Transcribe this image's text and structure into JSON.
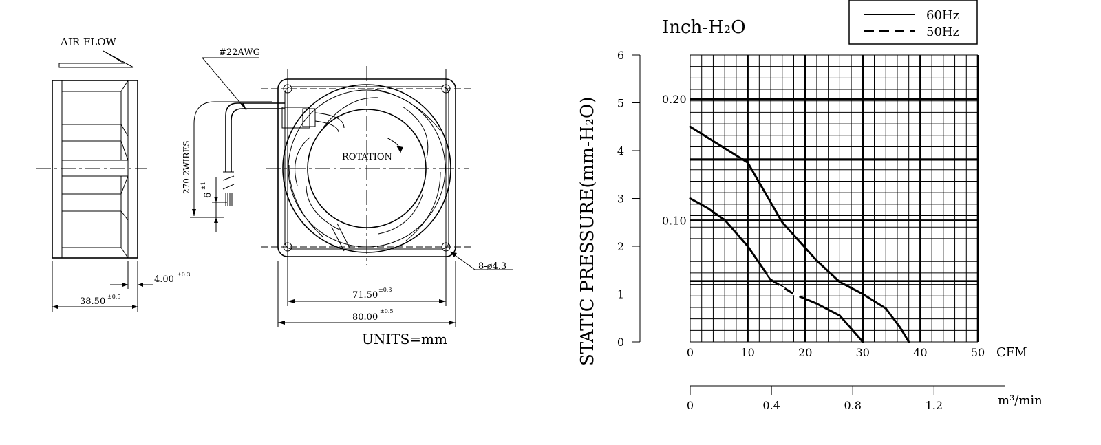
{
  "drawing": {
    "airflow_label": "AIR FLOW",
    "wire_label": "#22AWG",
    "wire_length_label": "270 2WIRES",
    "strip_dim": "6",
    "strip_tol": "±1",
    "rotation_label": "ROTATION",
    "hole_label": "8-ø4.3",
    "dims": [
      {
        "value": "4.00",
        "tol": "±0.3"
      },
      {
        "value": "38.50",
        "tol": "±0.5"
      },
      {
        "value": "71.50",
        "tol": "±0.3"
      },
      {
        "value": "80.00",
        "tol": "±0.5"
      }
    ],
    "units_label": "UNITS=mm"
  },
  "chart_data": {
    "type": "line",
    "unit_title": "Inch-H₂O",
    "ylabel": "STATIC PRESSURE(mm-H₂O)",
    "xlabel": "CFM",
    "xlim": [
      0,
      50
    ],
    "ylim": [
      0,
      6
    ],
    "x_ticks": [
      "0",
      "10",
      "20",
      "30",
      "40",
      "50"
    ],
    "y_ticks": [
      "0",
      "1",
      "2",
      "3",
      "4",
      "5",
      "6"
    ],
    "y2_ticks": [
      {
        "label": "0.10",
        "value": 2.54
      },
      {
        "label": "0.20",
        "value": 5.08
      }
    ],
    "x2_label": "m³/min",
    "x2_ticks": [
      {
        "label": "0",
        "value": 0
      },
      {
        "label": "0.4",
        "value": 14.13
      },
      {
        "label": "0.8",
        "value": 28.25
      },
      {
        "label": "1.2",
        "value": 42.38
      }
    ],
    "grid": true,
    "legend_position": "top-right",
    "series": [
      {
        "name": "60Hz",
        "style": "solid",
        "x": [
          0,
          4,
          10,
          16,
          22,
          26,
          30,
          34,
          36.5,
          38
        ],
        "y": [
          4.5,
          4.2,
          3.75,
          2.5,
          1.7,
          1.25,
          1.0,
          0.7,
          0.3,
          0
        ]
      },
      {
        "name": "50Hz",
        "style": "dashed",
        "x": [
          0,
          3,
          6,
          10,
          14,
          18,
          22,
          26,
          30
        ],
        "y": [
          3.0,
          2.8,
          2.55,
          2.0,
          1.3,
          1.0,
          0.8,
          0.55,
          0
        ]
      }
    ]
  }
}
